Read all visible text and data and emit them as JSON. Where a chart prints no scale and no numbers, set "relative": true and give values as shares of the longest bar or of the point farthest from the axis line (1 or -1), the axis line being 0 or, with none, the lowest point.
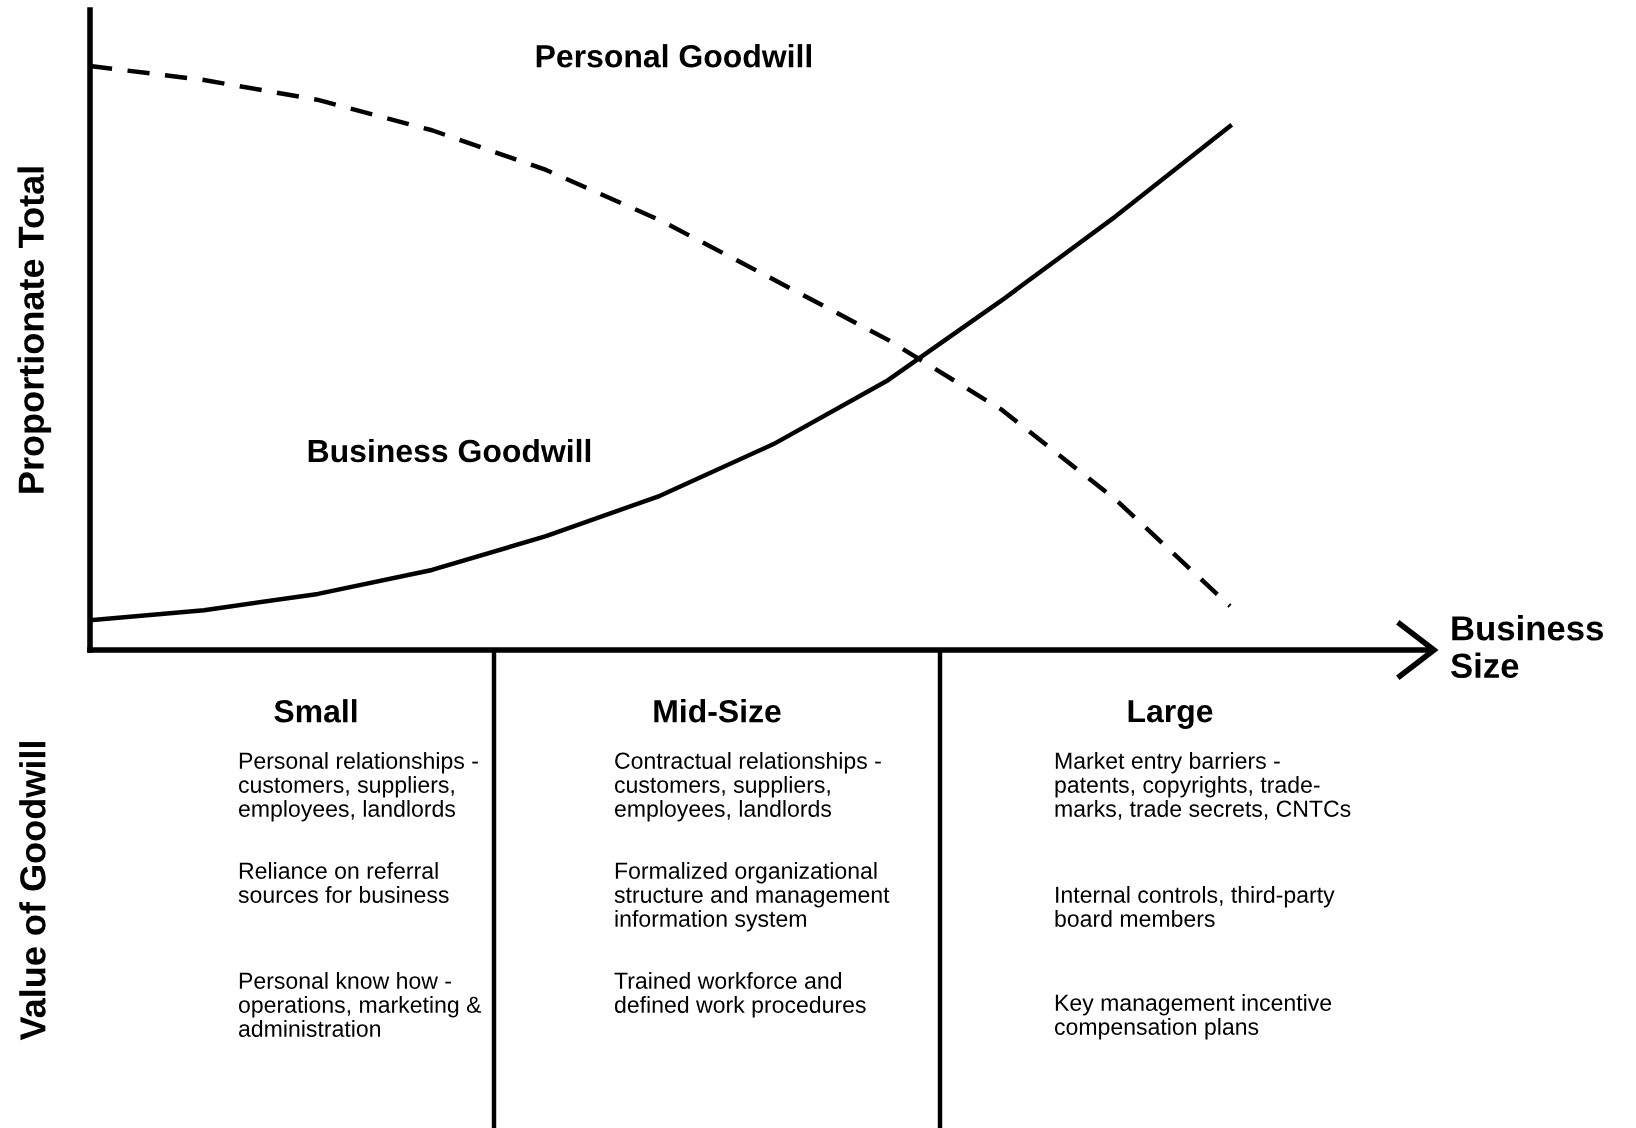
{
  "chart_data": {
    "type": "line",
    "relative": true,
    "ylabel": "Proportionate Total",
    "xlabel": "Business\nSize",
    "categories": [
      null,
      null,
      null,
      null,
      null,
      null,
      null,
      null,
      null,
      null,
      null
    ],
    "series": [
      {
        "name": "Personal Goodwill",
        "color": "#000000",
        "line_style": "dashed",
        "values": [
          1,
          0.976,
          0.942,
          0.89,
          0.822,
          0.736,
          0.634,
          0.531,
          0.411,
          0.257,
          0.075
        ]
      },
      {
        "name": "Business Goodwill",
        "color": "#000000",
        "line_style": "solid",
        "values": [
          0.051,
          0.068,
          0.096,
          0.137,
          0.195,
          0.264,
          0.353,
          0.462,
          0.599,
          0.743,
          0.897
        ]
      }
    ],
    "annotations": [
      "Value of Goodwill",
      "Small",
      "Personal relationships -\ncustomers, suppliers,\nemployees, landlords",
      "Reliance on referral\nsources for business",
      "Personal know how -\noperations, marketing &\nadministration",
      "Mid-Size",
      "Contractual relationships -\ncustomers, suppliers,\nemployees, landlords",
      "Formalized organizational\nstructure and management\ninformation system",
      "Trained workforce and\ndefined work procedures",
      "Large",
      "Market entry barriers -\npatents, copyrights, trade-\nmarks, trade secrets, CNTCs",
      "Internal controls, third-party\nboard members",
      "Key management incentive\ncompensation plans"
    ],
    "marker": "none"
  }
}
